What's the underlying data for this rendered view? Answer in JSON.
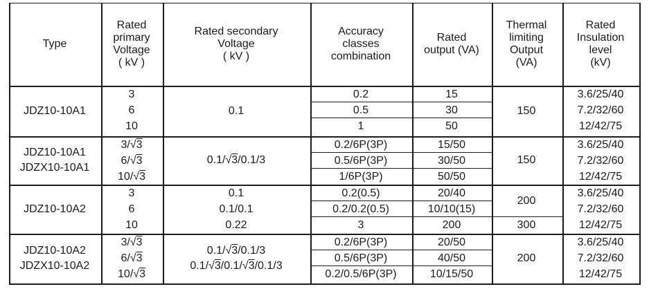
{
  "header": {
    "type": "Type",
    "primary": [
      "Rated",
      "primary",
      "Voltage",
      "( kV )"
    ],
    "secondary": [
      "Rated secondary",
      "Voltage",
      "( kV )"
    ],
    "accuracy": [
      "Accuracy",
      "classes",
      "combination"
    ],
    "output": [
      "Rated",
      "output (VA)"
    ],
    "thermal": [
      "Thermal",
      "limiting",
      "Output",
      "(VA)"
    ],
    "insulation": [
      "Rated",
      "Insulation",
      "level",
      "(kV)"
    ]
  },
  "groups": [
    {
      "types": [
        "JDZ10-10A1"
      ],
      "primary": [
        "3",
        "6",
        "10"
      ],
      "secondary": [
        "0.1"
      ],
      "accuracy": [
        "0.2",
        "0.5",
        "1"
      ],
      "output": [
        "15",
        "30",
        "50"
      ],
      "thermal": [
        "150"
      ],
      "insulation": [
        "3.6/25/40",
        "7.2/32/60",
        "12/42/75"
      ]
    },
    {
      "types": [
        "JDZ10-10A1",
        "JDZX10-10A1"
      ],
      "primary_parts": [
        [
          "3/",
          "√",
          "3"
        ],
        [
          "6/",
          "√",
          "3"
        ],
        [
          "10/",
          "√",
          "3"
        ]
      ],
      "secondary_parts": [
        [
          "0.1/",
          "√",
          "3",
          "/0.1/3"
        ]
      ],
      "accuracy": [
        "0.2/6P(3P)",
        "0.5/6P(3P)",
        "1/6P(3P)"
      ],
      "output": [
        "15/50",
        "30/50",
        "50/50"
      ],
      "thermal": [
        "150"
      ],
      "insulation": [
        "3.6/25/40",
        "7.2/32/60",
        "12/42/75"
      ]
    },
    {
      "types": [
        "JDZ10-10A2"
      ],
      "primary": [
        "3",
        "6",
        "10"
      ],
      "secondary": [
        "0.1",
        "0.1/0.1",
        "0.22"
      ],
      "accuracy": [
        "0.2(0.5)",
        "0.2/0.2(0.5)",
        "3"
      ],
      "output": [
        "20/40",
        "10/10(15)",
        "200"
      ],
      "thermal": [
        "200",
        "300"
      ],
      "insulation": [
        "3.6/25/40",
        "7.2/32/60",
        "12/42/75"
      ]
    },
    {
      "types": [
        "JDZ10-10A2",
        "JDZX10-10A2"
      ],
      "primary_parts": [
        [
          "3/",
          "√",
          "3"
        ],
        [
          "6/",
          "√",
          "3"
        ],
        [
          "10/",
          "√",
          "3"
        ]
      ],
      "secondary_parts": [
        [
          "0.1/",
          "√",
          "3",
          "/0.1/3"
        ],
        [
          "0.1/",
          "√",
          "3",
          "/0.1/",
          "√",
          "3",
          "/0.1/3"
        ]
      ],
      "accuracy": [
        "0.2/6P(3P)",
        "0.5/6P(3P)",
        "0.2/0.5/6P(3P)"
      ],
      "output": [
        "20/50",
        "40/50",
        "10/15/50"
      ],
      "thermal": [
        "200"
      ],
      "insulation": [
        "3.6/25/40",
        "7.2/32/60",
        "12/42/75"
      ]
    }
  ]
}
